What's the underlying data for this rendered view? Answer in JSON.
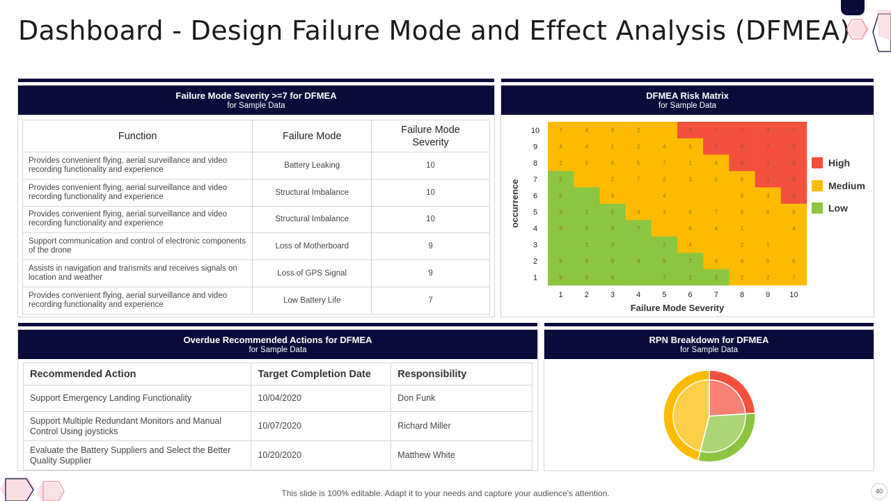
{
  "title": "Dashboard - Design Failure Mode and Effect Analysis (DFMEA)",
  "severity_panel": {
    "title": "Failure Mode Severity >=7 for DFMEA",
    "subtitle": "for Sample Data",
    "headers": [
      "Function",
      "Failure Mode",
      "Failure Mode Severity"
    ],
    "rows": [
      {
        "function": "Provides convenient flying, aerial surveillance and video recording functionality and experience",
        "failure_mode": "Battery Leaking",
        "severity": "10"
      },
      {
        "function": "Provides convenient flying, aerial surveillance and video recording functionality and experience",
        "failure_mode": "Structural Imbalance",
        "severity": "10"
      },
      {
        "function": "Provides convenient flying, aerial surveillance and video recording functionality and experience",
        "failure_mode": "Structural Imbalance",
        "severity": "10"
      },
      {
        "function": "Support communication and control of electronic components of the drone",
        "failure_mode": "Loss of Motherboard",
        "severity": "9"
      },
      {
        "function": "Assists in navigation and transmits and receives signals on location and weather",
        "failure_mode": "Loss of GPS Signal",
        "severity": "9"
      },
      {
        "function": "Provides convenient flying, aerial surveillance and video recording functionality and experience",
        "failure_mode": "Low Battery Life",
        "severity": "7"
      }
    ]
  },
  "risk_panel": {
    "title": "DFMEA Risk Matrix",
    "subtitle": "for Sample Data",
    "legend": [
      {
        "label": "High",
        "color": "#f4513c"
      },
      {
        "label": "Medium",
        "color": "#fdbb00"
      },
      {
        "label": "Low",
        "color": "#8cc540"
      }
    ]
  },
  "overdue_panel": {
    "title": "Overdue Recommended Actions  for DFMEA",
    "subtitle": "for Sample Data",
    "headers": [
      "Recommended Action",
      "Target Completion Date",
      "Responsibility"
    ],
    "rows": [
      {
        "action": "Support Emergency Landing Functionality",
        "date": "10/04/2020",
        "owner": "Don Funk"
      },
      {
        "action": "Support Multiple Redundant  Monitors and Manual Control Using joysticks",
        "date": "10/07/2020",
        "owner": "Richard Miller"
      },
      {
        "action": "Evaluate the Battery Suppliers and Select the Better Quality Supplier",
        "date": "10/20/2020",
        "owner": "Matthew White"
      }
    ]
  },
  "rpn_panel": {
    "title": "RPN Breakdown for DFMEA",
    "subtitle": "for Sample Data"
  },
  "footer": "This slide is 100% editable. Adapt it to your needs and capture your audience's attention.",
  "page_number": "40",
  "colors": {
    "navy": "#0b0b3b",
    "high": "#f4513c",
    "medium": "#fdbb00",
    "low": "#8cc540",
    "pink_accent": "#f3a6b3"
  },
  "chart_data": [
    {
      "type": "heatmap",
      "title": "",
      "xlabel": "Failure Mode Severity",
      "ylabel": "occurrence",
      "x": [
        1,
        2,
        3,
        4,
        5,
        6,
        7,
        8,
        9,
        10
      ],
      "y": [
        1,
        2,
        3,
        4,
        5,
        6,
        7,
        8,
        9,
        10
      ],
      "risk_levels_by_occurrence": {
        "10": [
          "M",
          "M",
          "M",
          "M",
          "M",
          "H",
          "H",
          "H",
          "H",
          "H"
        ],
        "9": [
          "M",
          "M",
          "M",
          "M",
          "M",
          "M",
          "H",
          "H",
          "H",
          "H"
        ],
        "8": [
          "M",
          "M",
          "M",
          "M",
          "M",
          "M",
          "M",
          "H",
          "H",
          "H"
        ],
        "7": [
          "L",
          "M",
          "M",
          "M",
          "M",
          "M",
          "M",
          "M",
          "H",
          "H"
        ],
        "6": [
          "L",
          "L",
          "M",
          "M",
          "M",
          "M",
          "M",
          "M",
          "M",
          "H"
        ],
        "5": [
          "L",
          "L",
          "L",
          "M",
          "M",
          "M",
          "M",
          "M",
          "M",
          "M"
        ],
        "4": [
          "L",
          "L",
          "L",
          "L",
          "M",
          "M",
          "M",
          "M",
          "M",
          "M"
        ],
        "3": [
          "L",
          "L",
          "L",
          "L",
          "L",
          "M",
          "M",
          "M",
          "M",
          "M"
        ],
        "2": [
          "L",
          "L",
          "L",
          "L",
          "L",
          "L",
          "M",
          "M",
          "M",
          "M"
        ],
        "1": [
          "L",
          "L",
          "L",
          "L",
          "L",
          "L",
          "L",
          "M",
          "M",
          "M"
        ]
      },
      "cell_numbers_by_occurrence": {
        "10": [
          "7",
          "4",
          "9",
          "2",
          "",
          "3",
          "1",
          "3",
          "4",
          "2"
        ],
        "9": [
          "4",
          "4",
          "1",
          "2",
          "4",
          "5",
          "1",
          "8",
          "7",
          "9"
        ],
        "8": [
          "2",
          "5",
          "6",
          "5",
          "7",
          "1",
          "4",
          "8",
          "3",
          "9"
        ],
        "7": [
          "5",
          "",
          "2",
          "7",
          "2",
          "3",
          "5",
          "6",
          "3",
          "9"
        ],
        "6": [
          "5",
          "",
          "4",
          "",
          "4",
          "",
          "",
          "6",
          "3",
          "8"
        ],
        "5": [
          "3",
          "1",
          "5",
          "4",
          "3",
          "6",
          "7",
          "6",
          "6",
          "9"
        ],
        "4": [
          "4",
          "5",
          "9",
          "7",
          "",
          "6",
          "4",
          "1",
          "",
          "4"
        ],
        "3": [
          "",
          "1",
          "3",
          "",
          "2",
          "4",
          "",
          "2",
          "1",
          ""
        ],
        "2": [
          "6",
          "9",
          "9",
          "8",
          "9",
          "7",
          "9",
          "4",
          "5",
          "6"
        ],
        "1": [
          "9",
          "9",
          "6",
          "",
          "7",
          "2",
          "3",
          "2",
          "2",
          "7"
        ]
      },
      "legend": [
        "High",
        "Medium",
        "Low"
      ],
      "legend_position": "right"
    },
    {
      "type": "pie",
      "title": "",
      "slices": [
        {
          "label": "High",
          "value": 24,
          "color": "#f4513c"
        },
        {
          "label": "Low",
          "value": 30,
          "color": "#8cc540"
        },
        {
          "label": "Medium",
          "value": 46,
          "color": "#fdbb00"
        }
      ]
    }
  ]
}
